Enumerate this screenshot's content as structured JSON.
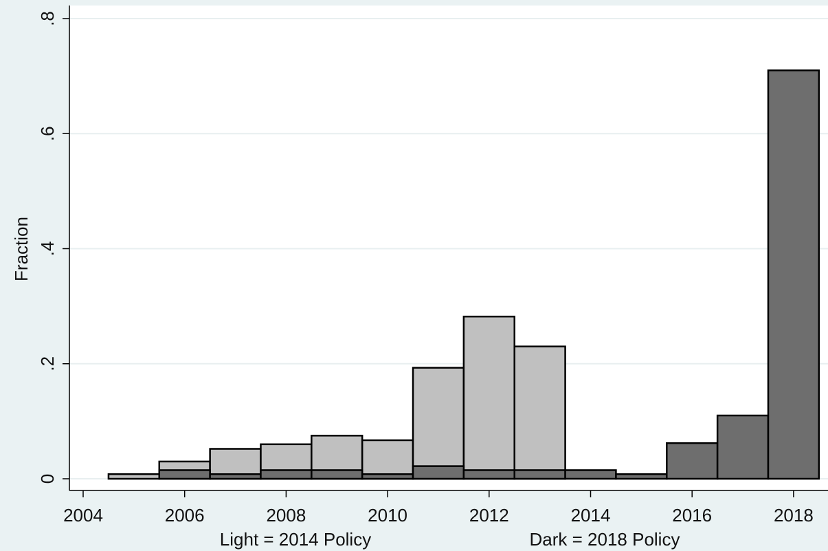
{
  "chart_data": {
    "type": "bar",
    "ylabel": "Fraction",
    "ylim": [
      0,
      0.8
    ],
    "xlim": [
      2003.9,
      2018.5
    ],
    "yticks": [
      {
        "value": 0.0,
        "label": "0"
      },
      {
        "value": 0.2,
        "label": ".2"
      },
      {
        "value": 0.4,
        "label": ".4"
      },
      {
        "value": 0.6,
        "label": ".6"
      },
      {
        "value": 0.8,
        "label": ".8"
      }
    ],
    "xticks": [
      {
        "value": 2004,
        "label": "2004"
      },
      {
        "value": 2006,
        "label": "2006"
      },
      {
        "value": 2008,
        "label": "2008"
      },
      {
        "value": 2010,
        "label": "2010"
      },
      {
        "value": 2012,
        "label": "2012"
      },
      {
        "value": 2014,
        "label": "2014"
      },
      {
        "value": 2016,
        "label": "2016"
      },
      {
        "value": 2018,
        "label": "2018"
      }
    ],
    "bin_width": 1,
    "grid": true,
    "notes": {
      "light": "Light = 2014 Policy",
      "dark": "Dark = 2018 Policy"
    },
    "series": [
      {
        "key": "light",
        "color": "#c0c0c0",
        "bins": [
          {
            "x": 2005,
            "value": 0.008
          },
          {
            "x": 2006,
            "value": 0.03
          },
          {
            "x": 2007,
            "value": 0.052
          },
          {
            "x": 2008,
            "value": 0.06
          },
          {
            "x": 2009,
            "value": 0.075
          },
          {
            "x": 2010,
            "value": 0.067
          },
          {
            "x": 2011,
            "value": 0.193
          },
          {
            "x": 2012,
            "value": 0.282
          },
          {
            "x": 2013,
            "value": 0.23
          }
        ]
      },
      {
        "key": "dark",
        "color": "#6e6e6e",
        "bins": [
          {
            "x": 2006,
            "value": 0.015
          },
          {
            "x": 2007,
            "value": 0.008
          },
          {
            "x": 2008,
            "value": 0.015
          },
          {
            "x": 2009,
            "value": 0.015
          },
          {
            "x": 2010,
            "value": 0.008
          },
          {
            "x": 2011,
            "value": 0.022
          },
          {
            "x": 2012,
            "value": 0.015
          },
          {
            "x": 2013,
            "value": 0.015
          },
          {
            "x": 2014,
            "value": 0.015
          },
          {
            "x": 2015,
            "value": 0.008
          },
          {
            "x": 2016,
            "value": 0.062
          },
          {
            "x": 2017,
            "value": 0.11
          },
          {
            "x": 2018,
            "value": 0.71
          }
        ]
      }
    ]
  }
}
